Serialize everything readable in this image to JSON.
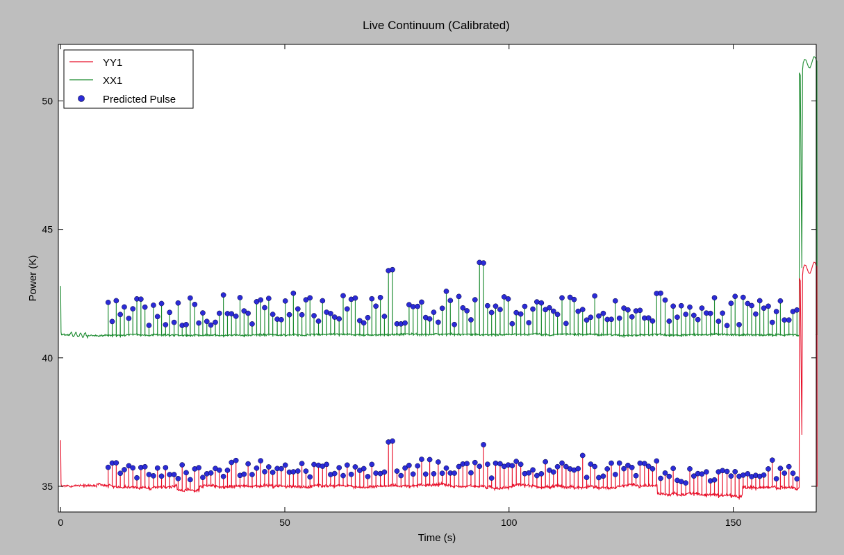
{
  "chart_data": {
    "type": "line",
    "title": "Live Continuum (Calibrated)",
    "xlabel": "Time (s)",
    "ylabel": "Power (K)",
    "xlim": [
      -0.5,
      168.5
    ],
    "ylim": [
      34.0,
      52.2
    ],
    "x_ticks": [
      0,
      50,
      100,
      150
    ],
    "y_ticks": [
      35,
      40,
      45,
      50
    ],
    "grid": false,
    "legend_position": "top-left",
    "series": [
      {
        "name": "YY1",
        "style": "line",
        "color": "#e8102a",
        "baseline": 35.0,
        "pulse_start": 10.5,
        "pulse_end": 164.5,
        "pulse_period": 0.92,
        "end_segment": {
          "rise_time": 164.7,
          "plateau": 43.4,
          "drop_times": [
            165.3,
            168.7
          ]
        }
      },
      {
        "name": "XX1",
        "style": "line",
        "color": "#1a8a2e",
        "baseline": 40.9,
        "pulse_start": 10.5,
        "pulse_end": 164.5,
        "pulse_period": 0.92,
        "end_segment": {
          "rise_time": 164.7,
          "plateau": 51.4,
          "drop_times": [
            165.3,
            168.7
          ]
        }
      },
      {
        "name": "Predicted Pulse",
        "style": "marker",
        "color": "#2b2bd6",
        "note_peaks": [
          [
            73.5,
            43.4
          ],
          [
            93.8,
            43.7
          ],
          [
            36.0,
            42.5
          ],
          [
            52.0,
            42.5
          ],
          [
            85.8,
            42.6
          ],
          [
            133.3,
            42.5
          ],
          [
            116.5,
            36.2
          ],
          [
            73.5,
            36.7
          ],
          [
            94.0,
            36.6
          ]
        ]
      }
    ]
  }
}
